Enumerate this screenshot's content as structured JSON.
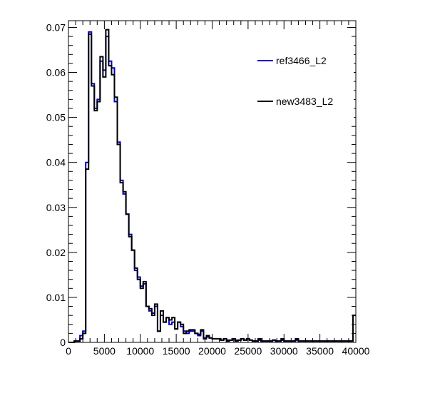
{
  "chart_data": {
    "type": "histogram-step",
    "title": "",
    "xlabel": "",
    "ylabel": "",
    "xlim": [
      0,
      40000
    ],
    "ylim": [
      0,
      0.0715
    ],
    "bin_width": 400,
    "x_ticks": [
      0,
      5000,
      10000,
      15000,
      20000,
      25000,
      30000,
      35000,
      40000
    ],
    "x_tick_labels": [
      "0",
      "5000",
      "10000",
      "15000",
      "20000",
      "25000",
      "30000",
      "35000",
      "40000"
    ],
    "y_ticks": [
      0,
      0.01,
      0.02,
      0.03,
      0.04,
      0.05,
      0.06,
      0.07
    ],
    "y_tick_labels": [
      "0",
      "0.01",
      "0.02",
      "0.03",
      "0.04",
      "0.05",
      "0.06",
      "0.07"
    ],
    "grid": false,
    "legend_position": "top-right",
    "series": [
      {
        "name": "ref3466_L2",
        "color": "#0000cc",
        "values": [
          0,
          0,
          0.0003,
          0.0003,
          0.0015,
          0.0025,
          0.04,
          0.069,
          0.0575,
          0.052,
          0.054,
          0.0625,
          0.0605,
          0.068,
          0.0625,
          0.061,
          0.0535,
          0.0445,
          0.036,
          0.033,
          0.0285,
          0.024,
          0.0205,
          0.016,
          0.0145,
          0.0125,
          0.013,
          0.008,
          0.007,
          0.0065,
          0.008,
          0.0025,
          0.006,
          0.0045,
          0.0055,
          0.004,
          0.0045,
          0.003,
          0.0045,
          0.0035,
          0.0025,
          0.002,
          0.0025,
          0.0025,
          0.002,
          0.0015,
          0.0025,
          0.001,
          0.0012,
          0.001,
          0.0008,
          0.0008,
          0.0008,
          0.0005,
          0.0008,
          0.0005,
          0.0005,
          0.0008,
          0.0005,
          0.0005,
          0.0008,
          0.0005,
          0.0008,
          0.0005,
          0.0003,
          0.0003,
          0.0005,
          0.0003,
          0.0003,
          0.0003,
          0.0003,
          0.0005,
          0.0003,
          0.0003,
          0.0005,
          0.0003,
          0.0003,
          0.0003,
          0.0003,
          0.0005,
          0.0003,
          0.0003,
          0.0003,
          0.0003,
          0.0003,
          0.0003,
          0.0003,
          0.0003,
          0.0003,
          0.0003,
          0.0003,
          0.0003,
          0.0003,
          0.0003,
          0.0003,
          0.0003,
          0.0003,
          0.0003,
          0.0003,
          0.006
        ]
      },
      {
        "name": "new3483_L2",
        "color": "#000000",
        "values": [
          0,
          0,
          0.0003,
          0.0003,
          0.0008,
          0.002,
          0.0385,
          0.0685,
          0.057,
          0.0515,
          0.0535,
          0.0635,
          0.059,
          0.0695,
          0.0615,
          0.0595,
          0.0545,
          0.044,
          0.0355,
          0.0335,
          0.0285,
          0.0235,
          0.0205,
          0.0165,
          0.014,
          0.012,
          0.0135,
          0.008,
          0.0075,
          0.006,
          0.0085,
          0.0025,
          0.007,
          0.0045,
          0.0055,
          0.005,
          0.0055,
          0.003,
          0.0045,
          0.004,
          0.002,
          0.0025,
          0.0028,
          0.0028,
          0.002,
          0.0018,
          0.0028,
          0.0008,
          0.0015,
          0.001,
          0.0008,
          0.0008,
          0.0008,
          0.0005,
          0.0008,
          0.0003,
          0.0005,
          0.0008,
          0.0003,
          0.0005,
          0.0008,
          0.0005,
          0.0008,
          0.0005,
          0.0003,
          0.0003,
          0.0008,
          0.0003,
          0.0003,
          0.0003,
          0.0003,
          0.0005,
          0.0003,
          0.0003,
          0.0008,
          0.0003,
          0.0003,
          0.0003,
          0.0003,
          0.0008,
          0.0003,
          0.0003,
          0.0003,
          0.0003,
          0.0003,
          0.0003,
          0.0003,
          0.0003,
          0.0003,
          0.0003,
          0.0003,
          0.0003,
          0.0003,
          0.0003,
          0.0003,
          0.0003,
          0.0003,
          0.0003,
          0.0003,
          0.006
        ]
      }
    ]
  }
}
